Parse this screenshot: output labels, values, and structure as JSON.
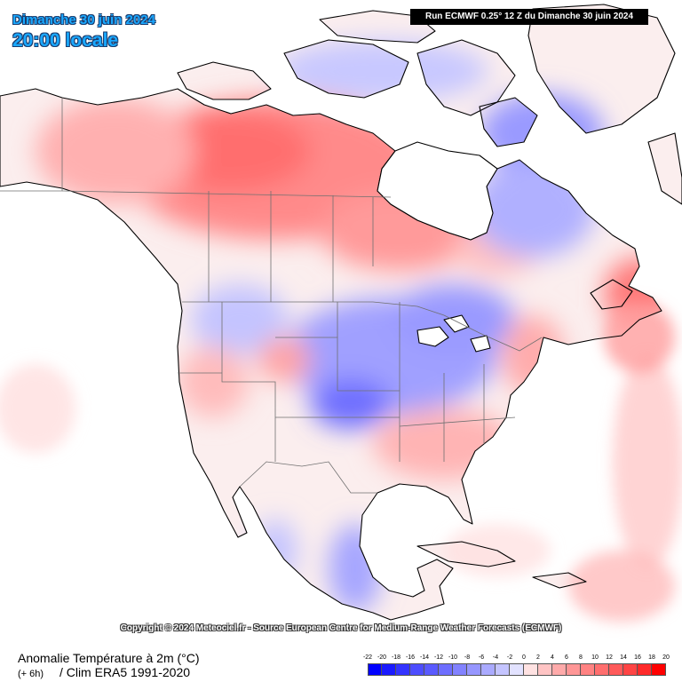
{
  "header": {
    "date": "Dimanche 30 juin 2024",
    "time": "20:00 locale",
    "run": "Run ECMWF 0.25° 12 Z du Dimanche 30 juin 2024"
  },
  "footer": {
    "copyright": "Copyright © 2024 Meteociel.fr - Source European Centre for Medium-Range Weather Forecasts (ECMWF)",
    "title": "Anomalie Température à 2m (°C)",
    "step": "(+ 6h)",
    "climatology": "/ Clim ERA5 1991-2020"
  },
  "legend": {
    "labels": [
      "-22",
      "-20",
      "-18",
      "-16",
      "-14",
      "-12",
      "-10",
      "-8",
      "-6",
      "-4",
      "-2",
      "0",
      "2",
      "4",
      "6",
      "8",
      "10",
      "12",
      "14",
      "16",
      "18",
      "20"
    ],
    "colors": [
      "#0000ff",
      "#1a1aff",
      "#3333ff",
      "#4d4dff",
      "#5a5aff",
      "#6e6eff",
      "#8282ff",
      "#9696ff",
      "#aaaaff",
      "#c4c4ff",
      "#e2e2ff",
      "#ffe2e2",
      "#ffc4c4",
      "#ffaaaa",
      "#ff9696",
      "#ff8282",
      "#ff6e6e",
      "#ff5a5a",
      "#ff4444",
      "#ff2a2a",
      "#ff0000"
    ]
  },
  "map": {
    "colors": {
      "ocean": "#ffffff",
      "warm": "#ff8282",
      "cold": "#8282ff",
      "coast": "#000000",
      "borders": "#6a6a6a"
    }
  }
}
